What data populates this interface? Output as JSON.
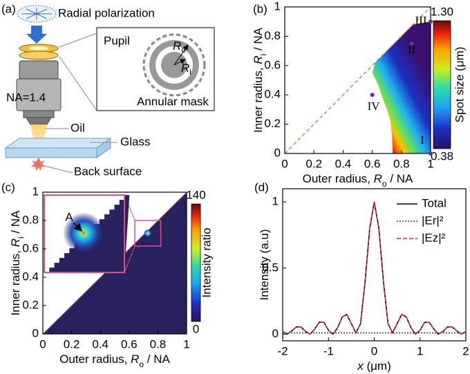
{
  "panel_labels": [
    "(a)",
    "(b)",
    "(c)",
    "(d)"
  ],
  "diagram": {
    "source": "Radial polarization",
    "pupil": "Pupil",
    "outer": {
      "symbol": "R",
      "sub": "o"
    },
    "inner": {
      "symbol": "R",
      "sub": "i"
    },
    "mask": "Annular mask",
    "objective": "NA=1.4",
    "oil": "Oil",
    "glass": "Glass",
    "surface": "Back surface"
  },
  "chart_data": [
    {
      "type": "heatmap",
      "xlabel": [
        "Outer radius, ",
        {
          "text": "R",
          "style": "italic"
        },
        {
          "text": "o",
          "style": "sub"
        },
        " / NA"
      ],
      "ylabel": [
        "Inner radius, ",
        {
          "text": "R",
          "style": "italic"
        },
        {
          "text": "i",
          "style": "sub"
        },
        " / NA"
      ],
      "xlim": [
        0,
        1
      ],
      "ylim": [
        0,
        1
      ],
      "xticks": [
        0,
        0.2,
        0.4,
        0.6,
        0.8,
        1
      ],
      "yticks": [
        0,
        0.2,
        0.4,
        0.6,
        0.8,
        1
      ],
      "colorbar": {
        "label": "Spot size (μm)",
        "ticks": [
          {
            "value": 1.3,
            "label": "1.30"
          },
          0.38
        ]
      },
      "annotations": [
        {
          "label": "I",
          "x": 1,
          "y": 0
        },
        {
          "label": "II",
          "x": 0.87,
          "y": 0.75
        },
        {
          "label": "III",
          "x": 1,
          "y": 0.9
        },
        {
          "label": "IV",
          "x": 0.6,
          "y": 0.4
        }
      ]
    },
    {
      "type": "heatmap",
      "xlabel": [
        "Outer radius, ",
        {
          "text": "R",
          "style": "italic"
        },
        {
          "text": "o",
          "style": "sub"
        },
        " / NA"
      ],
      "ylabel": [
        "Inner radius, ",
        {
          "text": "R",
          "style": "italic"
        },
        {
          "text": "i",
          "style": "sub"
        },
        " / NA"
      ],
      "xlim": [
        0,
        1
      ],
      "ylim": [
        0,
        1
      ],
      "xticks": [
        0,
        0.2,
        0.4,
        0.6,
        0.8,
        1
      ],
      "yticks": [
        0,
        0.2,
        0.4,
        0.6,
        0.8,
        1
      ],
      "colorbar": {
        "label": "Intensity ratio",
        "ticks": [
          140,
          0
        ]
      },
      "annotations": [
        {
          "label": "A",
          "x": 0.73,
          "y": 0.71
        }
      ]
    },
    {
      "type": "line",
      "xlabel": [
        {
          "text": "x",
          "style": "italic"
        },
        " (μm)"
      ],
      "ylabel": [
        "Intensity (a.u)"
      ],
      "xlim": [
        -2,
        2
      ],
      "ylim": [
        -0.05,
        1.1
      ],
      "xticks": [
        -2,
        -1,
        0,
        1,
        2
      ],
      "yticks": [
        0,
        0.5,
        1
      ],
      "x": [
        -2,
        -1.9,
        -1.8,
        -1.7,
        -1.6,
        -1.5,
        -1.4,
        -1.3,
        -1.2,
        -1.1,
        -1,
        -0.9,
        -0.8,
        -0.7,
        -0.6,
        -0.5,
        -0.4,
        -0.3,
        -0.2,
        -0.1,
        0,
        0.1,
        0.2,
        0.3,
        0.4,
        0.5,
        0.6,
        0.7,
        0.8,
        0.9,
        1,
        1.1,
        1.2,
        1.3,
        1.4,
        1.5,
        1.6,
        1.7,
        1.8,
        1.9,
        2
      ],
      "series": [
        {
          "name": "Total",
          "color": "#000000",
          "dash": "none",
          "values": [
            0.02,
            0,
            0.025,
            0.055,
            0.055,
            0.02,
            0,
            0.04,
            0.09,
            0.09,
            0.03,
            0,
            0.05,
            0.13,
            0.15,
            0.08,
            0.01,
            0.08,
            0.4,
            0.8,
            1,
            0.8,
            0.4,
            0.08,
            0.01,
            0.08,
            0.15,
            0.13,
            0.05,
            0,
            0.03,
            0.09,
            0.09,
            0.04,
            0,
            0.02,
            0.055,
            0.055,
            0.025,
            0,
            0.02
          ]
        },
        {
          "name": "|Er|²",
          "color": "#2b2bbf",
          "dash": "2,2",
          "values": [
            0.01,
            0.01,
            0.01,
            0.01,
            0.01,
            0.01,
            0.01,
            0.01,
            0.01,
            0.01,
            0.01,
            0.01,
            0.01,
            0.01,
            0.01,
            0.01,
            0.01,
            0.01,
            0.01,
            0.01,
            0.01,
            0.01,
            0.01,
            0.01,
            0.01,
            0.01,
            0.01,
            0.01,
            0.01,
            0.01,
            0.01,
            0.01,
            0.01,
            0.01,
            0.01,
            0.01,
            0.01,
            0.01,
            0.01,
            0.01,
            0.01
          ]
        },
        {
          "name": "|Ez|²",
          "color": "#d42a2a",
          "dash": "6,3",
          "values": [
            0.02,
            0,
            0.025,
            0.055,
            0.055,
            0.02,
            0,
            0.04,
            0.09,
            0.09,
            0.03,
            0,
            0.05,
            0.13,
            0.15,
            0.08,
            0.01,
            0.08,
            0.4,
            0.8,
            1,
            0.8,
            0.4,
            0.08,
            0.01,
            0.08,
            0.15,
            0.13,
            0.05,
            0,
            0.03,
            0.09,
            0.09,
            0.04,
            0,
            0.02,
            0.055,
            0.055,
            0.025,
            0,
            0.02
          ]
        }
      ],
      "legend": "upper right"
    }
  ]
}
